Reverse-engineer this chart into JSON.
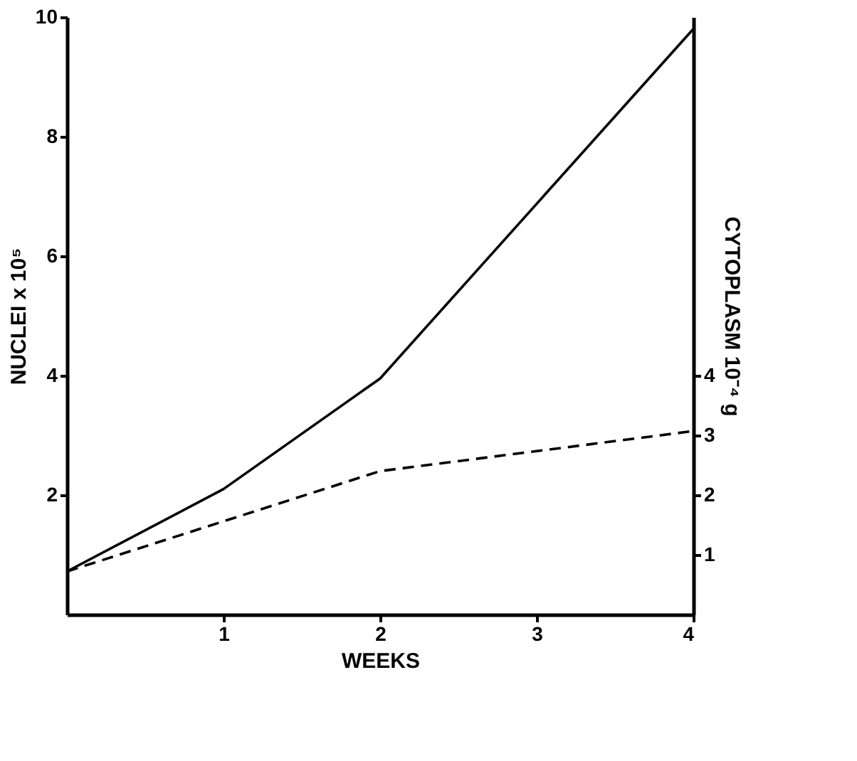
{
  "chart_data": {
    "type": "line",
    "xlabel": "WEEKS",
    "ylabel": "NUCLEI x 10⁵",
    "y2label": "CYTOPLASM 10⁻⁴ g",
    "x": [
      0,
      1,
      2,
      4
    ],
    "xlim": [
      0,
      4
    ],
    "xticks": [
      1,
      2,
      3,
      4
    ],
    "ylim": [
      0,
      10
    ],
    "yticks": [
      2,
      4,
      6,
      8,
      10
    ],
    "y2lim": [
      0,
      10
    ],
    "y2ticks": [
      1,
      2,
      3,
      4
    ],
    "grid": false,
    "marker": "none",
    "series": [
      {
        "color": "#000000",
        "line_style": "solid",
        "values": [
          0.72,
          2.1,
          3.95,
          9.8
        ]
      },
      {
        "color": "#000000",
        "line_style": "dashed",
        "axis": "y2",
        "values": [
          0.72,
          1.56,
          2.4,
          3.07
        ]
      }
    ]
  }
}
